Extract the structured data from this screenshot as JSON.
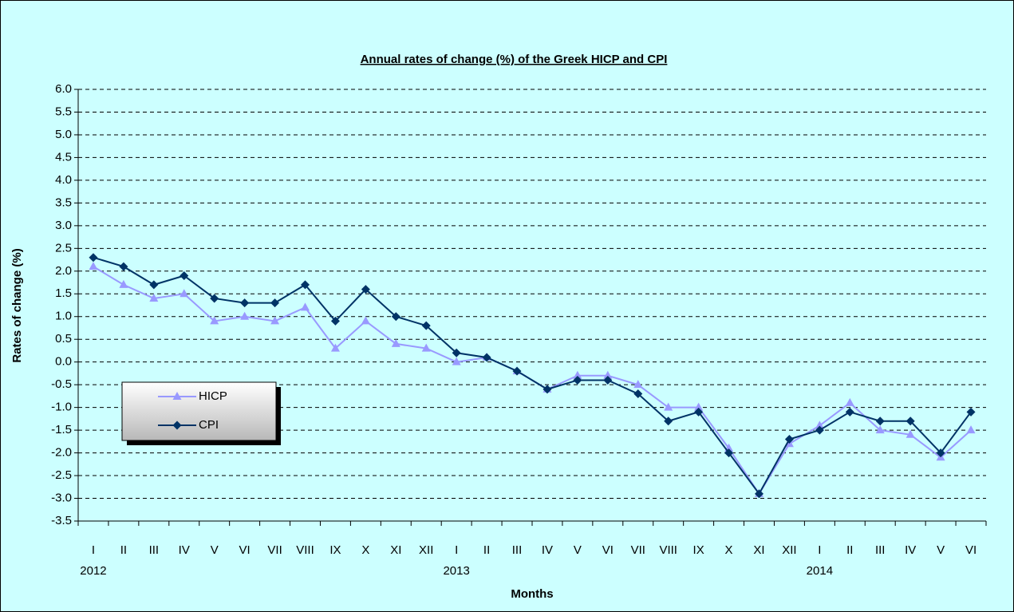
{
  "chart_data": {
    "type": "line",
    "title": "Annual rates of change (%) of the Greek HICP and CPI",
    "x_label": "Months",
    "y_label": "Rates of change (%)",
    "categories": [
      "I",
      "II",
      "III",
      "IV",
      "V",
      "VI",
      "VII",
      "VIII",
      "IX",
      "X",
      "XI",
      "XII",
      "I",
      "II",
      "III",
      "IV",
      "V",
      "VI",
      "VII",
      "VIII",
      "IX",
      "X",
      "XI",
      "XII",
      "I",
      "II",
      "III",
      "IV",
      "V",
      "VI"
    ],
    "years": [
      "2012",
      null,
      null,
      null,
      null,
      null,
      null,
      null,
      null,
      null,
      null,
      null,
      "2013",
      null,
      null,
      null,
      null,
      null,
      null,
      null,
      null,
      null,
      null,
      null,
      "2014",
      null,
      null,
      null,
      null,
      null
    ],
    "series": [
      {
        "name": "HICP",
        "color": "#9999ff",
        "marker": "triangle",
        "values": [
          2.1,
          1.7,
          1.4,
          1.5,
          0.9,
          1.0,
          0.9,
          1.2,
          0.3,
          0.9,
          0.4,
          0.3,
          0.0,
          0.1,
          -0.2,
          -0.6,
          -0.3,
          -0.3,
          -0.5,
          -1.0,
          -1.0,
          -1.9,
          -2.9,
          -1.8,
          -1.4,
          -0.9,
          -1.5,
          -1.6,
          -2.1,
          -1.5
        ]
      },
      {
        "name": "CPI",
        "color": "#003366",
        "marker": "diamond",
        "values": [
          2.3,
          2.1,
          1.7,
          1.9,
          1.4,
          1.3,
          1.3,
          1.7,
          0.9,
          1.6,
          1.0,
          0.8,
          0.2,
          0.1,
          -0.2,
          -0.6,
          -0.4,
          -0.4,
          -0.7,
          -1.3,
          -1.1,
          -2.0,
          -2.9,
          -1.7,
          -1.5,
          -1.1,
          -1.3,
          -1.3,
          -2.0,
          -1.1
        ]
      }
    ],
    "ylim": [
      -3.5,
      6.0
    ],
    "yticks": [
      -3.5,
      {
        "value": -3.0,
        "label": "-3.0"
      },
      -2.5,
      {
        "value": -2.0,
        "label": "-2.0"
      },
      -1.5,
      {
        "value": -1.0,
        "label": "-1.0"
      },
      -0.5,
      {
        "value": 0,
        "label": "0.0"
      },
      0.5,
      {
        "value": 1,
        "label": "1.0"
      },
      1.5,
      {
        "value": 2,
        "label": "2.0"
      },
      2.5,
      {
        "value": 3,
        "label": "3.0"
      },
      3.5,
      {
        "value": 4,
        "label": "4.0"
      },
      4.5,
      {
        "value": 5,
        "label": "5.0"
      },
      5.5,
      {
        "value": 6,
        "label": "6.0"
      }
    ],
    "grid": true,
    "legend": "lower-left"
  }
}
